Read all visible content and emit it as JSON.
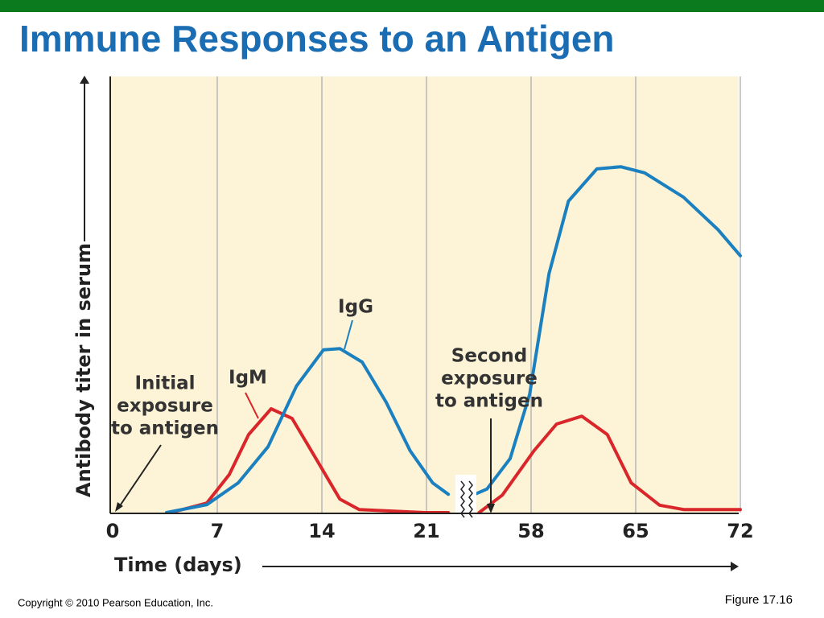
{
  "chart_data": {
    "type": "line",
    "title": "Immune Responses to an Antigen",
    "x_label": "Time (days)",
    "y_label": "Antibody titer in serum",
    "xticks": [
      0,
      7,
      14,
      21,
      58,
      65,
      72
    ],
    "ylim": [
      0,
      100
    ],
    "grid": true,
    "series": [
      {
        "name": "IgM",
        "color": "#d9262b",
        "x": [
          3.9,
          6.3,
          7.8,
          9.1,
          10.6,
          12.0,
          13.6,
          15.2,
          16.5,
          20.9,
          28.7,
          null,
          39.6,
          47.8,
          58.2,
          59.7,
          61.4,
          63.1,
          64.7,
          66.6,
          68.2,
          72
        ],
        "values": [
          0,
          2.2,
          8.7,
          17.9,
          23.8,
          21.6,
          12.4,
          3.1,
          0.7,
          0,
          0,
          null,
          0,
          4,
          14.2,
          20.3,
          22.1,
          17.9,
          6.8,
          1.7,
          0.7,
          0.7
        ]
      },
      {
        "name": "IgG",
        "color": "#1b80c0",
        "x": [
          3.6,
          6.3,
          8.4,
          10.4,
          12.3,
          14.1,
          15.2,
          16.7,
          18.3,
          19.9,
          23.2,
          28.7,
          null,
          34.2,
          42.4,
          50.6,
          57.5,
          59.2,
          60.5,
          62.4,
          64,
          65.6,
          68.2,
          70.5,
          72
        ],
        "values": [
          0,
          1.8,
          6.8,
          15.1,
          29,
          37.3,
          37.6,
          34.5,
          25.3,
          14.2,
          6.8,
          4.2,
          null,
          3.1,
          5.4,
          12.4,
          27.1,
          54.8,
          71.4,
          78.8,
          79.3,
          77.9,
          72.3,
          64.9,
          58.9
        ]
      }
    ],
    "annotations": [
      {
        "lines": [
          "Initial",
          "exposure",
          "to antigen"
        ]
      },
      {
        "lines": [
          "Second",
          "exposure",
          "to antigen"
        ]
      }
    ]
  },
  "footer": {
    "copyright": "Copyright © 2010 Pearson Education, Inc.",
    "figure": "Figure 17.16"
  }
}
